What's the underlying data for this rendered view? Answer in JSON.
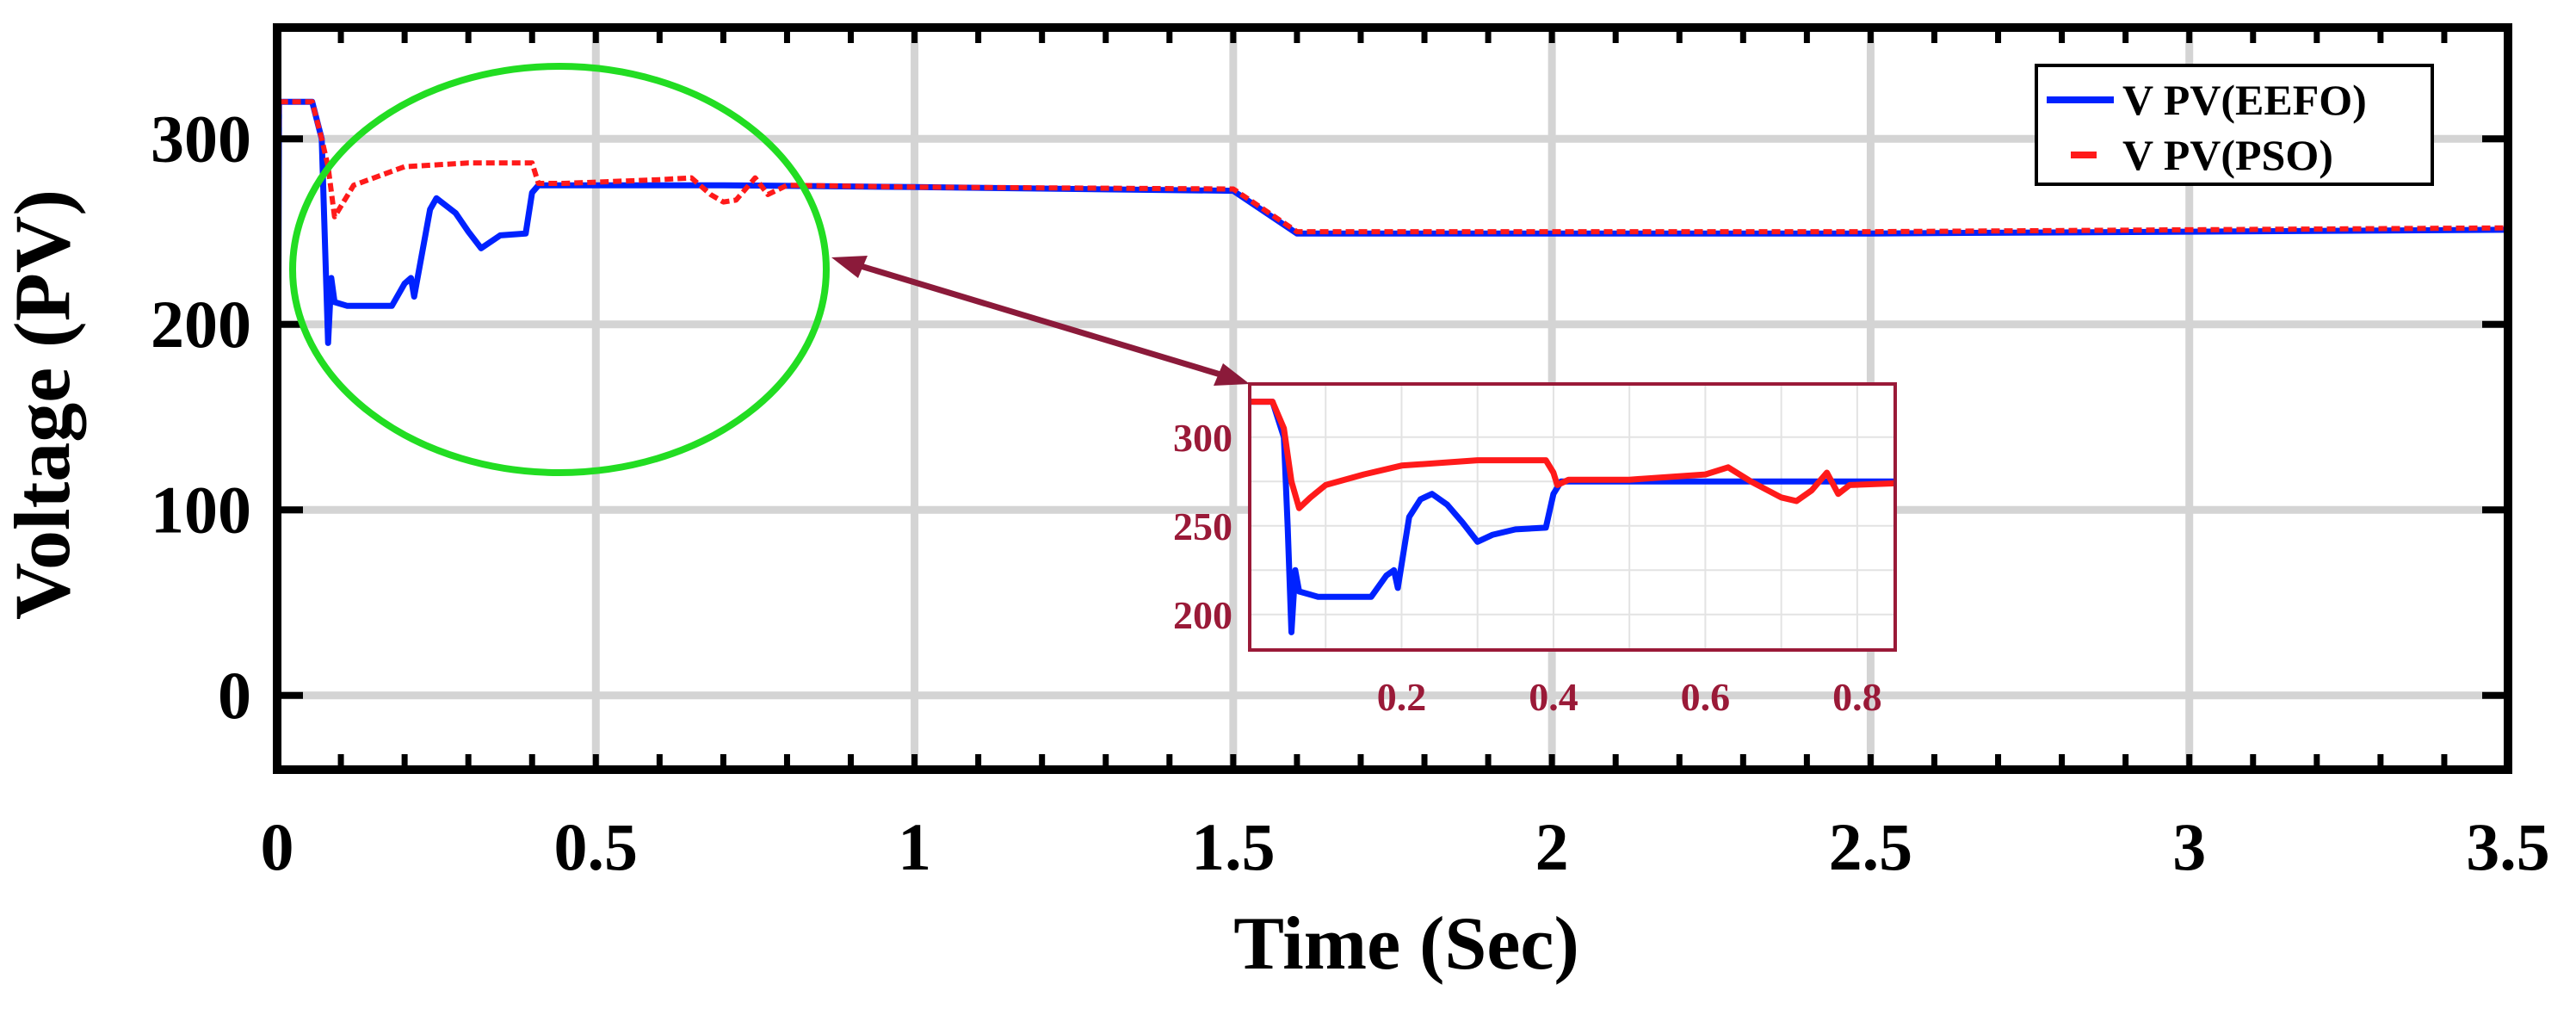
{
  "chart_data": [
    {
      "type": "line",
      "xlabel": "Time (Sec)",
      "ylabel": "Voltage  (PV)",
      "xlim": [
        0,
        3.5
      ],
      "ylim": [
        -40,
        360
      ],
      "x_ticks": [
        0,
        0.5,
        1,
        1.5,
        2,
        2.5,
        3,
        3.5
      ],
      "x_tick_labels": [
        "0",
        "0.5",
        "1",
        "1.5",
        "2",
        "2.5",
        "3",
        "3.5"
      ],
      "y_ticks": [
        0,
        100,
        200,
        300
      ],
      "y_tick_labels": [
        "0",
        "100",
        "200",
        "300"
      ],
      "grid": true,
      "legend_position": "top-right",
      "series": [
        {
          "name": "V PV(EEFO)",
          "color": "#0022ff",
          "style": "solid",
          "points": [
            [
              0,
              0
            ],
            [
              0.003,
              320
            ],
            [
              0.055,
              320
            ],
            [
              0.07,
              300
            ],
            [
              0.08,
              190
            ],
            [
              0.085,
              225
            ],
            [
              0.09,
              212
            ],
            [
              0.11,
              210
            ],
            [
              0.18,
              210
            ],
            [
              0.2,
              222
            ],
            [
              0.21,
              225
            ],
            [
              0.215,
              215
            ],
            [
              0.24,
              262
            ],
            [
              0.25,
              268
            ],
            [
              0.28,
              260
            ],
            [
              0.3,
              250
            ],
            [
              0.32,
              241
            ],
            [
              0.35,
              248
            ],
            [
              0.39,
              249
            ],
            [
              0.4,
              271
            ],
            [
              0.41,
              275
            ],
            [
              0.7,
              275
            ],
            [
              1.0,
              274
            ],
            [
              1.5,
              272
            ],
            [
              1.6,
              249
            ],
            [
              2.0,
              249
            ],
            [
              2.5,
              249
            ],
            [
              3.0,
              250
            ],
            [
              3.5,
              251
            ]
          ]
        },
        {
          "name": "V PV(PSO)",
          "color": "#ff1a1a",
          "style": "dashed",
          "points": [
            [
              0,
              0
            ],
            [
              0.003,
              320
            ],
            [
              0.055,
              320
            ],
            [
              0.07,
              300
            ],
            [
              0.08,
              285
            ],
            [
              0.09,
              258
            ],
            [
              0.12,
              275
            ],
            [
              0.2,
              285
            ],
            [
              0.3,
              287
            ],
            [
              0.4,
              287
            ],
            [
              0.41,
              276
            ],
            [
              0.45,
              276
            ],
            [
              0.6,
              278
            ],
            [
              0.65,
              279
            ],
            [
              0.68,
              270
            ],
            [
              0.7,
              266
            ],
            [
              0.72,
              267
            ],
            [
              0.75,
              279
            ],
            [
              0.77,
              270
            ],
            [
              0.8,
              275
            ],
            [
              1.0,
              274
            ],
            [
              1.5,
              273
            ],
            [
              1.6,
              250
            ],
            [
              2.0,
              250
            ],
            [
              2.5,
              250
            ],
            [
              3.0,
              251
            ],
            [
              3.5,
              252
            ]
          ]
        }
      ],
      "annotation": {
        "type": "ellipse",
        "color": "#22dd22",
        "arrow_color": "#8b1a3a"
      }
    },
    {
      "type": "line",
      "inset": true,
      "color": "#9a1a38",
      "xlim": [
        0.0,
        0.85
      ],
      "ylim": [
        180,
        330
      ],
      "x_ticks": [
        0.2,
        0.4,
        0.6,
        0.8
      ],
      "x_tick_labels": [
        "0.2",
        "0.4",
        "0.6",
        "0.8"
      ],
      "y_ticks": [
        200,
        250,
        300
      ],
      "y_tick_labels": [
        "200",
        "250",
        "300"
      ],
      "grid": true,
      "series": [
        {
          "name": "V PV(EEFO)",
          "color": "#0022ff",
          "points": [
            [
              0,
              320
            ],
            [
              0.03,
              320
            ],
            [
              0.045,
              300
            ],
            [
              0.05,
              250
            ],
            [
              0.055,
              190
            ],
            [
              0.06,
              225
            ],
            [
              0.065,
              213
            ],
            [
              0.09,
              210
            ],
            [
              0.16,
              210
            ],
            [
              0.18,
              222
            ],
            [
              0.19,
              225
            ],
            [
              0.195,
              215
            ],
            [
              0.21,
              255
            ],
            [
              0.225,
              265
            ],
            [
              0.24,
              268
            ],
            [
              0.26,
              262
            ],
            [
              0.28,
              252
            ],
            [
              0.3,
              241
            ],
            [
              0.32,
              245
            ],
            [
              0.35,
              248
            ],
            [
              0.39,
              249
            ],
            [
              0.4,
              268
            ],
            [
              0.41,
              275
            ],
            [
              0.5,
              275
            ],
            [
              0.6,
              275
            ],
            [
              0.7,
              275
            ],
            [
              0.85,
              275
            ]
          ]
        },
        {
          "name": "V PV(PSO)",
          "color": "#ff1a1a",
          "points": [
            [
              0,
              320
            ],
            [
              0.03,
              320
            ],
            [
              0.045,
              305
            ],
            [
              0.055,
              275
            ],
            [
              0.065,
              260
            ],
            [
              0.08,
              266
            ],
            [
              0.1,
              273
            ],
            [
              0.15,
              279
            ],
            [
              0.2,
              284
            ],
            [
              0.3,
              287
            ],
            [
              0.39,
              287
            ],
            [
              0.4,
              280
            ],
            [
              0.405,
              273
            ],
            [
              0.42,
              276
            ],
            [
              0.5,
              276
            ],
            [
              0.6,
              279
            ],
            [
              0.63,
              283
            ],
            [
              0.66,
              275
            ],
            [
              0.7,
              266
            ],
            [
              0.72,
              264
            ],
            [
              0.74,
              270
            ],
            [
              0.76,
              280
            ],
            [
              0.775,
              268
            ],
            [
              0.79,
              273
            ],
            [
              0.85,
              274
            ]
          ]
        }
      ]
    }
  ]
}
